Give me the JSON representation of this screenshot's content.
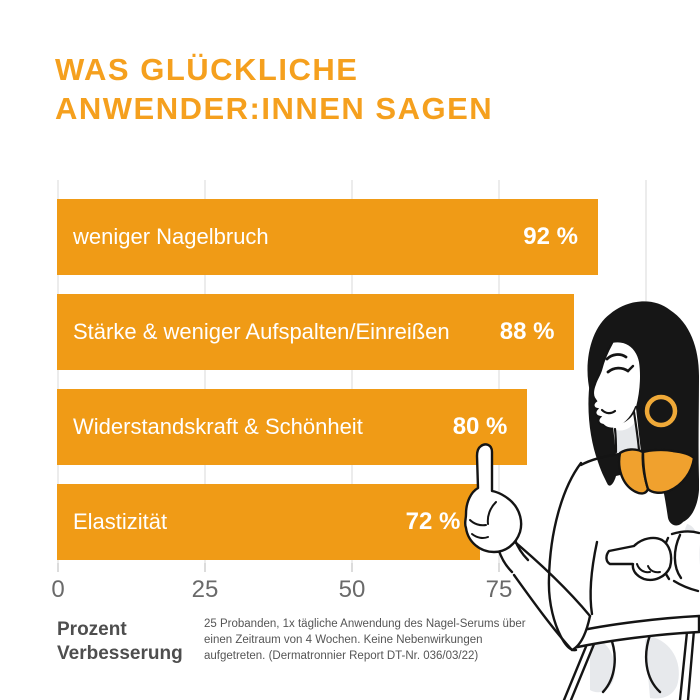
{
  "title": {
    "line1": "WAS GLÜCKLICHE",
    "line2": "ANWENDER:INNEN SAGEN"
  },
  "chart_data": {
    "type": "bar",
    "orientation": "horizontal",
    "title": "Was glückliche Anwender:innen sagen",
    "categories": [
      "weniger Nagelbruch",
      "Stärke & weniger Aufspalten/Einreißen",
      "Widerstandskraft & Schönheit",
      "Elastizität"
    ],
    "values": [
      92,
      88,
      80,
      72
    ],
    "bars": [
      {
        "label": "weniger Nagelbruch",
        "value": 92,
        "value_label": "92 %"
      },
      {
        "label": "Stärke & weniger Aufspalten/Einreißen",
        "value": 88,
        "value_label": "88 %"
      },
      {
        "label": "Widerstandskraft & Schönheit",
        "value": 80,
        "value_label": "80 %"
      },
      {
        "label": "Elastizität",
        "value": 72,
        "value_label": "72 %"
      }
    ],
    "xlabel": "Prozent Verbesserung",
    "x_ticks": [
      "0",
      "25",
      "50",
      "75"
    ],
    "xlim": [
      0,
      100
    ],
    "grid": true,
    "legend": false,
    "bar_color": "#F09B16"
  },
  "axis": {
    "tick0": "0",
    "tick25": "25",
    "tick50": "50",
    "tick75": "75"
  },
  "footer": {
    "xlabel_text": "Prozent\nVerbesserung",
    "footnote_line1": "25 Probanden, 1x tägliche Anwendung des Nagel-Serums über",
    "footnote_line2": "einen Zeitraum von 4 Wochen. Keine Nebenwirkungen aufgetreten.",
    "footnote_line3": "(Dermatronnier Report DT-Nr. 036/03/22)"
  },
  "illustration": {
    "description": "line-art woman with long black hair pointing at the chart",
    "hair_color": "#161616",
    "collar_color": "#F0A12E",
    "earring_color": "#EFA938",
    "outline_color": "#141414",
    "shadow_color": "#E7E9EC"
  },
  "colors": {
    "accent_orange": "#F5A01E",
    "bar_orange": "#F09B16",
    "grid_gray": "#ECECEC",
    "tick_gray": "#6A6A6A",
    "text_gray": "#4E4E4E",
    "background": "#FFFFFF"
  }
}
